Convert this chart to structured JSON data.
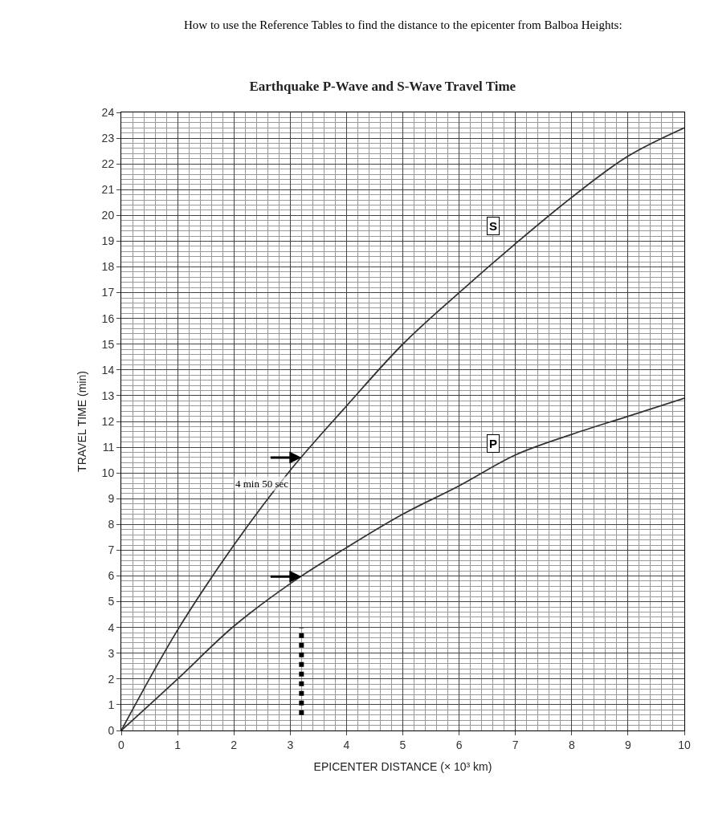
{
  "chart_data": {
    "type": "line",
    "title": "Earthquake P-Wave and S-Wave Travel Time",
    "xlabel": "EPICENTER DISTANCE (× 10³ km)",
    "ylabel": "TRAVEL TIME (min)",
    "annotations": [
      "How to use the Reference Tables to find the distance to the epicenter from Balboa Heights:",
      "4 min 50 sec"
    ],
    "x": [
      0,
      1,
      2,
      3,
      4,
      5,
      6,
      7,
      8,
      9,
      10
    ],
    "series": [
      {
        "name": "S",
        "color": "#333333",
        "values": [
          0,
          3.9,
          7.2,
          10.1,
          12.6,
          15.0,
          17.0,
          18.9,
          20.7,
          22.3,
          23.4
        ]
      },
      {
        "name": "P",
        "color": "#333333",
        "values": [
          0,
          2.0,
          4.05,
          5.7,
          7.1,
          8.4,
          9.5,
          10.7,
          11.5,
          12.2,
          12.9
        ]
      }
    ],
    "xlim": [
      0,
      10
    ],
    "xticks": [
      0,
      1,
      2,
      3,
      4,
      5,
      6,
      7,
      8,
      9,
      10
    ],
    "ylim": [
      0,
      24
    ],
    "yticks": [
      0,
      1,
      2,
      3,
      4,
      5,
      6,
      7,
      8,
      9,
      10,
      11,
      12,
      13,
      14,
      15,
      16,
      17,
      18,
      19,
      20,
      21,
      22,
      23,
      24
    ],
    "ref_lines": [
      {
        "axis": "x",
        "value": 3.2,
        "label": null,
        "color": "#000000",
        "line_style": "dotted"
      }
    ],
    "grid": true,
    "legend": false,
    "marker": "none",
    "line_style": "solid"
  }
}
